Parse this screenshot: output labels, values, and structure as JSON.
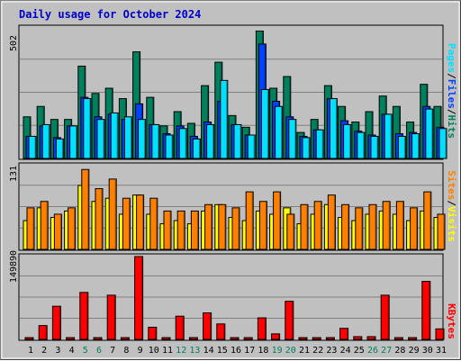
{
  "chart_data": {
    "type": "bar",
    "title": "Daily usage for October 2024",
    "days": [
      "1",
      "2",
      "3",
      "4",
      "5",
      "6",
      "7",
      "8",
      "9",
      "10",
      "11",
      "12",
      "13",
      "14",
      "15",
      "16",
      "17",
      "18",
      "19",
      "20",
      "21",
      "22",
      "23",
      "24",
      "25",
      "26",
      "27",
      "28",
      "29",
      "30",
      "31"
    ],
    "weekend_days": [
      "5",
      "6",
      "12",
      "13",
      "19",
      "20",
      "26",
      "27"
    ],
    "colors": {
      "hits": "#00805c",
      "files": "#0040ff",
      "pages": "#00e0ff",
      "visits": "#ffff00",
      "sites": "#ff8000",
      "kbytes": "#ff0000",
      "weekday_label": "#000000",
      "weekend_label": "#00805c"
    },
    "panels": [
      {
        "name": "hits-files-pages",
        "ymax_label": "502",
        "ylim": [
          0,
          502
        ],
        "series": [
          {
            "name": "Hits",
            "values": [
              160,
              200,
              150,
              150,
              355,
              250,
              270,
              230,
              410,
              235,
              125,
              180,
              135,
              280,
              370,
              165,
              120,
              490,
              270,
              315,
              100,
              150,
              280,
              200,
              140,
              180,
              240,
              200,
              140,
              285,
              200
            ]
          },
          {
            "name": "Files",
            "values": [
              85,
              125,
              80,
              125,
              235,
              160,
              170,
              150,
              210,
              130,
              95,
              125,
              85,
              140,
              220,
              130,
              90,
              440,
              220,
              160,
              85,
              110,
              230,
              145,
              105,
              90,
              170,
              95,
              100,
              200,
              120
            ]
          },
          {
            "name": "Pages",
            "values": [
              85,
              130,
              75,
              125,
              230,
              150,
              175,
              160,
              150,
              130,
              90,
              115,
              75,
              130,
              300,
              130,
              90,
              265,
              200,
              150,
              80,
              110,
              230,
              130,
              100,
              85,
              170,
              85,
              95,
              190,
              115
            ]
          }
        ]
      },
      {
        "name": "visits-sites",
        "ymax_label": "131",
        "ylim": [
          0,
          131
        ],
        "series": [
          {
            "name": "Visits",
            "values": [
              45,
              65,
              50,
              60,
              100,
              75,
              80,
              55,
              85,
              55,
              40,
              45,
              40,
              60,
              70,
              50,
              45,
              60,
              55,
              65,
              40,
              55,
              70,
              50,
              45,
              55,
              60,
              55,
              45,
              60,
              50
            ]
          },
          {
            "name": "Sites",
            "values": [
              65,
              75,
              55,
              65,
              125,
              95,
              110,
              80,
              85,
              80,
              60,
              60,
              60,
              70,
              70,
              65,
              90,
              75,
              90,
              55,
              70,
              75,
              85,
              70,
              65,
              70,
              75,
              75,
              65,
              90,
              55
            ]
          }
        ]
      },
      {
        "name": "kbytes",
        "ymax_label": "149890",
        "ylim": [
          0,
          149890
        ],
        "series": [
          {
            "name": "KBytes",
            "values": [
              0,
              25000,
              60000,
              0,
              85000,
              0,
              80000,
              0,
              149890,
              22000,
              0,
              42000,
              0,
              48000,
              28000,
              0,
              0,
              39000,
              10000,
              69000,
              0,
              0,
              0,
              20000,
              5000,
              5000,
              80000,
              0,
              0,
              105000,
              19000
            ]
          }
        ]
      }
    ],
    "legends": {
      "top": [
        {
          "text": "Pages",
          "color": "#00e0ff"
        },
        {
          "text": "/",
          "color": "#000000"
        },
        {
          "text": "Files",
          "color": "#0040ff"
        },
        {
          "text": "/",
          "color": "#000000"
        },
        {
          "text": "Hits",
          "color": "#00805c"
        }
      ],
      "middle": [
        {
          "text": "Sites",
          "color": "#ff8000"
        },
        {
          "text": "/",
          "color": "#000000"
        },
        {
          "text": "Visits",
          "color": "#ffff00"
        }
      ],
      "bottom": [
        {
          "text": "KBytes",
          "color": "#ff0000"
        }
      ]
    }
  }
}
